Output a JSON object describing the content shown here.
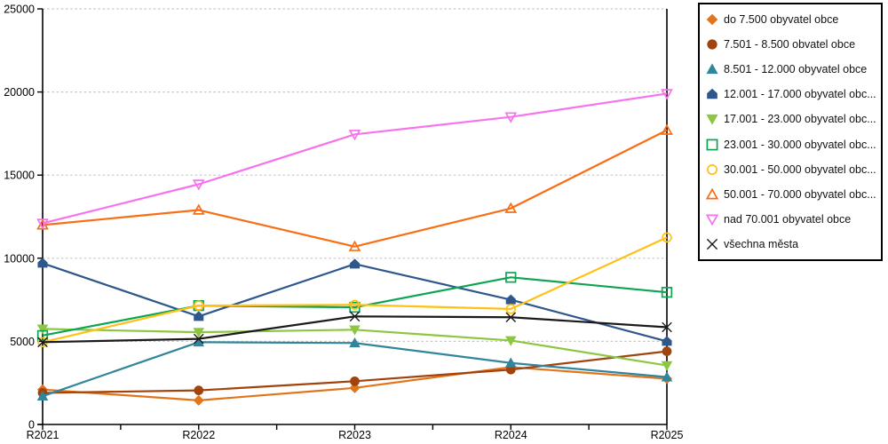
{
  "chart_data": {
    "type": "line",
    "title": "",
    "xlabel": "",
    "ylabel": "",
    "x_categories": [
      "R2021",
      "R2022",
      "R2023",
      "R2024",
      "R2025"
    ],
    "y_ticks": [
      0,
      5000,
      10000,
      15000,
      20000,
      25000
    ],
    "ylim": [
      0,
      25000
    ],
    "grid": "horizontal dashed gridlines at every 5000 including top",
    "legend_position": "right",
    "axis_color": "#000000",
    "gridline_color": "#c6c6c6",
    "series": [
      {
        "name": "do 7.500 obyvatel obce",
        "marker": "diamond",
        "filled": true,
        "color": "#e2751c",
        "values": [
          2100,
          1450,
          2200,
          3450,
          2750
        ]
      },
      {
        "name": "7.501 - 8.500 obvatel obce",
        "marker": "circle",
        "filled": true,
        "color": "#a2430d",
        "values": [
          1900,
          2050,
          2600,
          3300,
          4400
        ]
      },
      {
        "name": "8.501 - 12.000 obyvatel obce",
        "marker": "triangle-up",
        "filled": true,
        "color": "#31859c",
        "values": [
          1700,
          4950,
          4900,
          3700,
          2850
        ]
      },
      {
        "name": "12.001 - 17.000 obyvatel obc...",
        "marker": "pentagon",
        "filled": true,
        "color": "#2e578c",
        "values": [
          9700,
          6500,
          9650,
          7500,
          5000
        ]
      },
      {
        "name": "17.001 - 23.000 obyvatel obc...",
        "marker": "triangle-down",
        "filled": true,
        "color": "#8dc63f",
        "values": [
          5750,
          5550,
          5700,
          5050,
          3550
        ]
      },
      {
        "name": "23.001 - 30.000 obyvatel obc...",
        "marker": "square",
        "filled": false,
        "color": "#0da554",
        "values": [
          5350,
          7150,
          7050,
          8850,
          7950
        ]
      },
      {
        "name": "30.001 - 50.000 obyvatel obc...",
        "marker": "circle",
        "filled": false,
        "color": "#ffc113",
        "values": [
          4950,
          7150,
          7200,
          6950,
          11250
        ]
      },
      {
        "name": "50.001 - 70.000 obyvatel obc...",
        "marker": "triangle-up",
        "filled": false,
        "color": "#f86e15",
        "values": [
          12000,
          12900,
          10700,
          13000,
          17700
        ]
      },
      {
        "name": "nad 70.001 obyvatel obce",
        "marker": "triangle-down",
        "filled": false,
        "color": "#f673ee",
        "values": [
          12100,
          14450,
          17450,
          18500,
          19900
        ]
      },
      {
        "name": "všechna města",
        "marker": "x",
        "filled": false,
        "color": "#1a1a1a",
        "values": [
          4950,
          5150,
          6500,
          6450,
          5850
        ]
      }
    ]
  }
}
